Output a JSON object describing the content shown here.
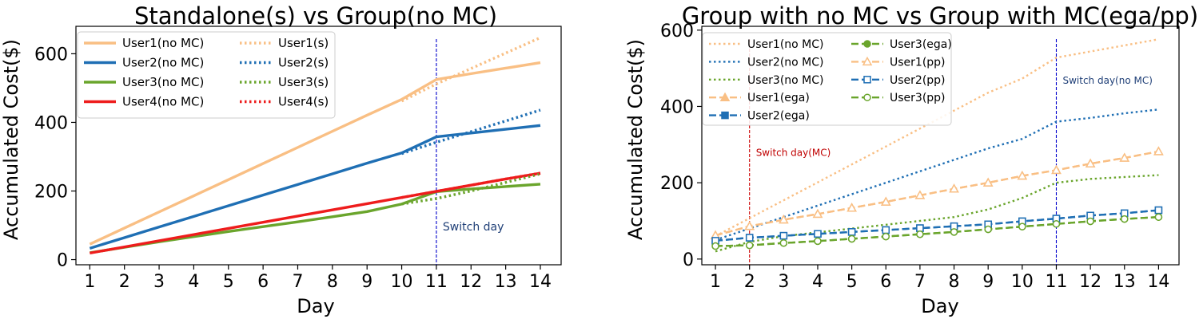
{
  "chart_data": [
    {
      "type": "line",
      "title": "Standalone(s) vs Group(no MC)",
      "xlabel": "Day",
      "ylabel": "Accumulated Cost($)",
      "x": [
        1,
        2,
        3,
        4,
        5,
        6,
        7,
        8,
        9,
        10,
        11,
        12,
        13,
        14
      ],
      "xlim": [
        0.6,
        14.6
      ],
      "ylim": [
        -15,
        680
      ],
      "yticks": [
        0,
        200,
        400,
        600
      ],
      "legend_location": "upper-left",
      "legend_columns": 2,
      "annotations": [
        {
          "text": "Switch day",
          "x": 11,
          "y": 85,
          "color": "#1f3f77"
        }
      ],
      "vlines": [
        {
          "x": 11,
          "color": "#0000cc"
        }
      ],
      "series": [
        {
          "name": "User1(no MC)",
          "color": "#f9bf84",
          "style": "solid",
          "marker": "none",
          "values": [
            45,
            92,
            139,
            186,
            233,
            280,
            327,
            374,
            421,
            467,
            525,
            542,
            558,
            574
          ]
        },
        {
          "name": "User2(no MC)",
          "color": "#1f6fb4",
          "style": "solid",
          "marker": "none",
          "values": [
            33,
            64,
            95,
            126,
            157,
            188,
            219,
            250,
            281,
            311,
            358,
            369,
            380,
            391
          ]
        },
        {
          "name": "User3(no MC)",
          "color": "#6aa52c",
          "style": "solid",
          "marker": "none",
          "values": [
            20,
            36,
            52,
            67,
            82,
            96,
            110,
            125,
            140,
            162,
            198,
            206,
            213,
            220
          ]
        },
        {
          "name": "User4(no MC)",
          "color": "#ee1c1c",
          "style": "solid",
          "marker": "none",
          "values": [
            19,
            37,
            55,
            73,
            91,
            109,
            127,
            145,
            163,
            181,
            199,
            217,
            235,
            252
          ]
        },
        {
          "name": "User1(s)",
          "color": "#f9bf84",
          "style": "dotted",
          "marker": "none",
          "values": [
            null,
            null,
            null,
            null,
            null,
            null,
            null,
            null,
            null,
            462,
            512,
            557,
            602,
            647
          ]
        },
        {
          "name": "User2(s)",
          "color": "#1f6fb4",
          "style": "dotted",
          "marker": "none",
          "values": [
            null,
            null,
            null,
            null,
            null,
            null,
            null,
            null,
            null,
            309,
            342,
            373,
            404,
            436
          ]
        },
        {
          "name": "User3(s)",
          "color": "#6aa52c",
          "style": "dotted",
          "marker": "none",
          "values": [
            null,
            null,
            null,
            null,
            null,
            null,
            null,
            null,
            null,
            162,
            178,
            200,
            225,
            250
          ]
        },
        {
          "name": "User4(s)",
          "color": "#ee1c1c",
          "style": "dotted",
          "marker": "none",
          "values": [
            null,
            null,
            null,
            null,
            null,
            null,
            null,
            null,
            null,
            181,
            199,
            217,
            235,
            252
          ]
        }
      ]
    },
    {
      "type": "line",
      "title": "Group with no MC vs Group with MC(ega/pp)",
      "xlabel": "Day",
      "ylabel": "Accumulated Cost($)",
      "x": [
        1,
        2,
        3,
        4,
        5,
        6,
        7,
        8,
        9,
        10,
        11,
        12,
        13,
        14
      ],
      "xlim": [
        0.6,
        14.6
      ],
      "ylim": [
        -15,
        610
      ],
      "yticks": [
        0,
        200,
        400,
        600
      ],
      "legend_location": "upper-left",
      "legend_columns": 2,
      "annotations": [
        {
          "text": "Switch day(no MC)",
          "x": 11,
          "y": 460,
          "color": "#1f3f77"
        },
        {
          "text": "Switch day(MC)",
          "x": 2,
          "y": 270,
          "color": "#c00000"
        }
      ],
      "vlines": [
        {
          "x": 11,
          "color": "#0000cc"
        },
        {
          "x": 2,
          "color": "#cc0000"
        }
      ],
      "series": [
        {
          "name": "User1(no MC)",
          "color": "#f9bf84",
          "style": "dotted",
          "marker": "none",
          "values": [
            60,
            107,
            154,
            201,
            248,
            295,
            342,
            389,
            436,
            473,
            528,
            544,
            560,
            576
          ]
        },
        {
          "name": "User2(no MC)",
          "color": "#1f6fb4",
          "style": "dotted",
          "marker": "none",
          "values": [
            50,
            80,
            110,
            140,
            170,
            200,
            230,
            260,
            290,
            315,
            360,
            370,
            382,
            392
          ]
        },
        {
          "name": "User3(no MC)",
          "color": "#6aa52c",
          "style": "dotted",
          "marker": "none",
          "values": [
            20,
            45,
            60,
            70,
            80,
            90,
            100,
            110,
            130,
            160,
            200,
            210,
            215,
            220
          ]
        },
        {
          "name": "User1(ega)",
          "color": "#f9bf84",
          "style": "dashed",
          "marker": "triangle",
          "values": [
            62,
            86,
            103,
            118,
            134,
            150,
            167,
            184,
            200,
            218,
            233,
            250,
            265,
            282
          ]
        },
        {
          "name": "User2(ega)",
          "color": "#1f6fb4",
          "style": "dashed",
          "marker": "square",
          "values": [
            48,
            56,
            61,
            66,
            71,
            76,
            81,
            86,
            91,
            99,
            106,
            114,
            120,
            128
          ]
        },
        {
          "name": "User3(ega)",
          "color": "#6aa52c",
          "style": "dashed",
          "marker": "circle",
          "values": [
            34,
            36,
            42,
            47,
            53,
            59,
            65,
            71,
            78,
            85,
            92,
            99,
            105,
            110
          ]
        },
        {
          "name": "User1(pp)",
          "color": "#f9bf84",
          "style": "dashed",
          "marker": "triangle-open",
          "values": [
            62,
            86,
            103,
            118,
            134,
            150,
            167,
            184,
            200,
            218,
            233,
            250,
            265,
            282
          ]
        },
        {
          "name": "User2(pp)",
          "color": "#1f6fb4",
          "style": "dashed",
          "marker": "square-open",
          "values": [
            48,
            56,
            61,
            66,
            71,
            76,
            81,
            86,
            91,
            99,
            106,
            114,
            120,
            128
          ]
        },
        {
          "name": "User3(pp)",
          "color": "#6aa52c",
          "style": "dashed",
          "marker": "circle-open",
          "values": [
            34,
            36,
            42,
            47,
            53,
            59,
            65,
            71,
            78,
            85,
            92,
            99,
            105,
            110
          ]
        }
      ]
    }
  ]
}
